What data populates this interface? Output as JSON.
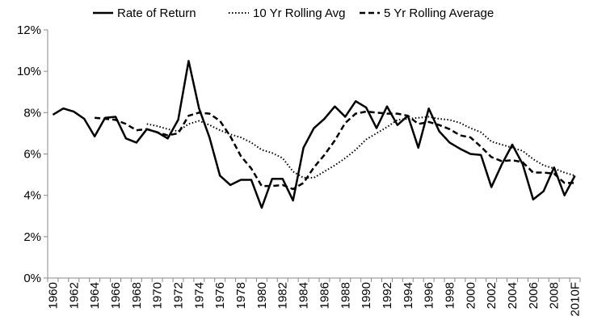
{
  "chart_data": {
    "type": "line",
    "x": [
      "1960",
      "1961",
      "1962",
      "1963",
      "1964",
      "1965",
      "1966",
      "1967",
      "1968",
      "1969",
      "1970",
      "1971",
      "1972",
      "1973",
      "1974",
      "1975",
      "1976",
      "1977",
      "1978",
      "1979",
      "1980",
      "1981",
      "1982",
      "1983",
      "1984",
      "1985",
      "1986",
      "1987",
      "1988",
      "1989",
      "1990",
      "1991",
      "1992",
      "1993",
      "1994",
      "1995",
      "1996",
      "1997",
      "1998",
      "1999",
      "2000",
      "2001",
      "2002",
      "2003",
      "2004",
      "2005",
      "2006",
      "2007",
      "2008",
      "2009",
      "2010F"
    ],
    "x_tick_labels": [
      "1960",
      "1962",
      "1964",
      "1966",
      "1968",
      "1970",
      "1972",
      "1974",
      "1976",
      "1978",
      "1980",
      "1982",
      "1984",
      "1986",
      "1988",
      "1990",
      "1992",
      "1994",
      "1996",
      "1998",
      "2000",
      "2002",
      "2004",
      "2006",
      "2008",
      "2010F"
    ],
    "ylim": [
      0,
      12
    ],
    "y_ticks": [
      0,
      2,
      4,
      6,
      8,
      10,
      12
    ],
    "y_tick_format": "%",
    "grid": false,
    "legend_placement": "top",
    "series": [
      {
        "name": "Rate of Return",
        "style": "solid",
        "values": [
          7.9,
          8.2,
          8.05,
          7.7,
          6.85,
          7.75,
          7.8,
          6.75,
          6.55,
          7.2,
          7.05,
          6.75,
          7.65,
          10.5,
          8.2,
          6.8,
          4.95,
          4.5,
          4.75,
          4.75,
          3.4,
          4.8,
          4.8,
          3.75,
          6.3,
          7.25,
          7.7,
          8.3,
          7.8,
          8.55,
          8.25,
          7.25,
          8.3,
          7.4,
          7.85,
          6.3,
          8.2,
          7.1,
          6.55,
          6.25,
          6.0,
          5.95,
          4.4,
          5.5,
          6.45,
          5.5,
          3.8,
          4.2,
          5.35,
          4.0,
          4.95
        ]
      },
      {
        "name": "10 Yr Rolling Avg",
        "style": "dotted",
        "values": [
          null,
          null,
          null,
          null,
          null,
          null,
          null,
          null,
          null,
          7.45,
          7.35,
          7.2,
          7.1,
          7.45,
          7.6,
          7.4,
          7.15,
          6.95,
          6.8,
          6.55,
          6.2,
          6.05,
          5.8,
          5.15,
          4.85,
          4.85,
          5.15,
          5.45,
          5.8,
          6.2,
          6.7,
          7.0,
          7.3,
          7.65,
          7.7,
          7.75,
          7.8,
          7.7,
          7.65,
          7.5,
          7.25,
          7.05,
          6.6,
          6.45,
          6.3,
          6.15,
          5.75,
          5.45,
          5.3,
          5.1,
          4.95
        ]
      },
      {
        "name": "5 Yr Rolling Average",
        "style": "dashed",
        "values": [
          null,
          null,
          null,
          null,
          7.75,
          7.7,
          7.65,
          7.45,
          7.15,
          7.2,
          7.05,
          6.9,
          7.0,
          7.85,
          8.0,
          7.95,
          7.6,
          6.85,
          5.9,
          5.3,
          4.45,
          4.45,
          4.5,
          4.3,
          4.6,
          5.35,
          5.95,
          6.65,
          7.5,
          7.95,
          8.05,
          8.0,
          7.95,
          7.95,
          7.85,
          7.45,
          7.55,
          7.4,
          7.2,
          6.9,
          6.8,
          6.35,
          5.85,
          5.65,
          5.7,
          5.6,
          5.1,
          5.1,
          5.05,
          4.6,
          4.6
        ]
      }
    ]
  }
}
